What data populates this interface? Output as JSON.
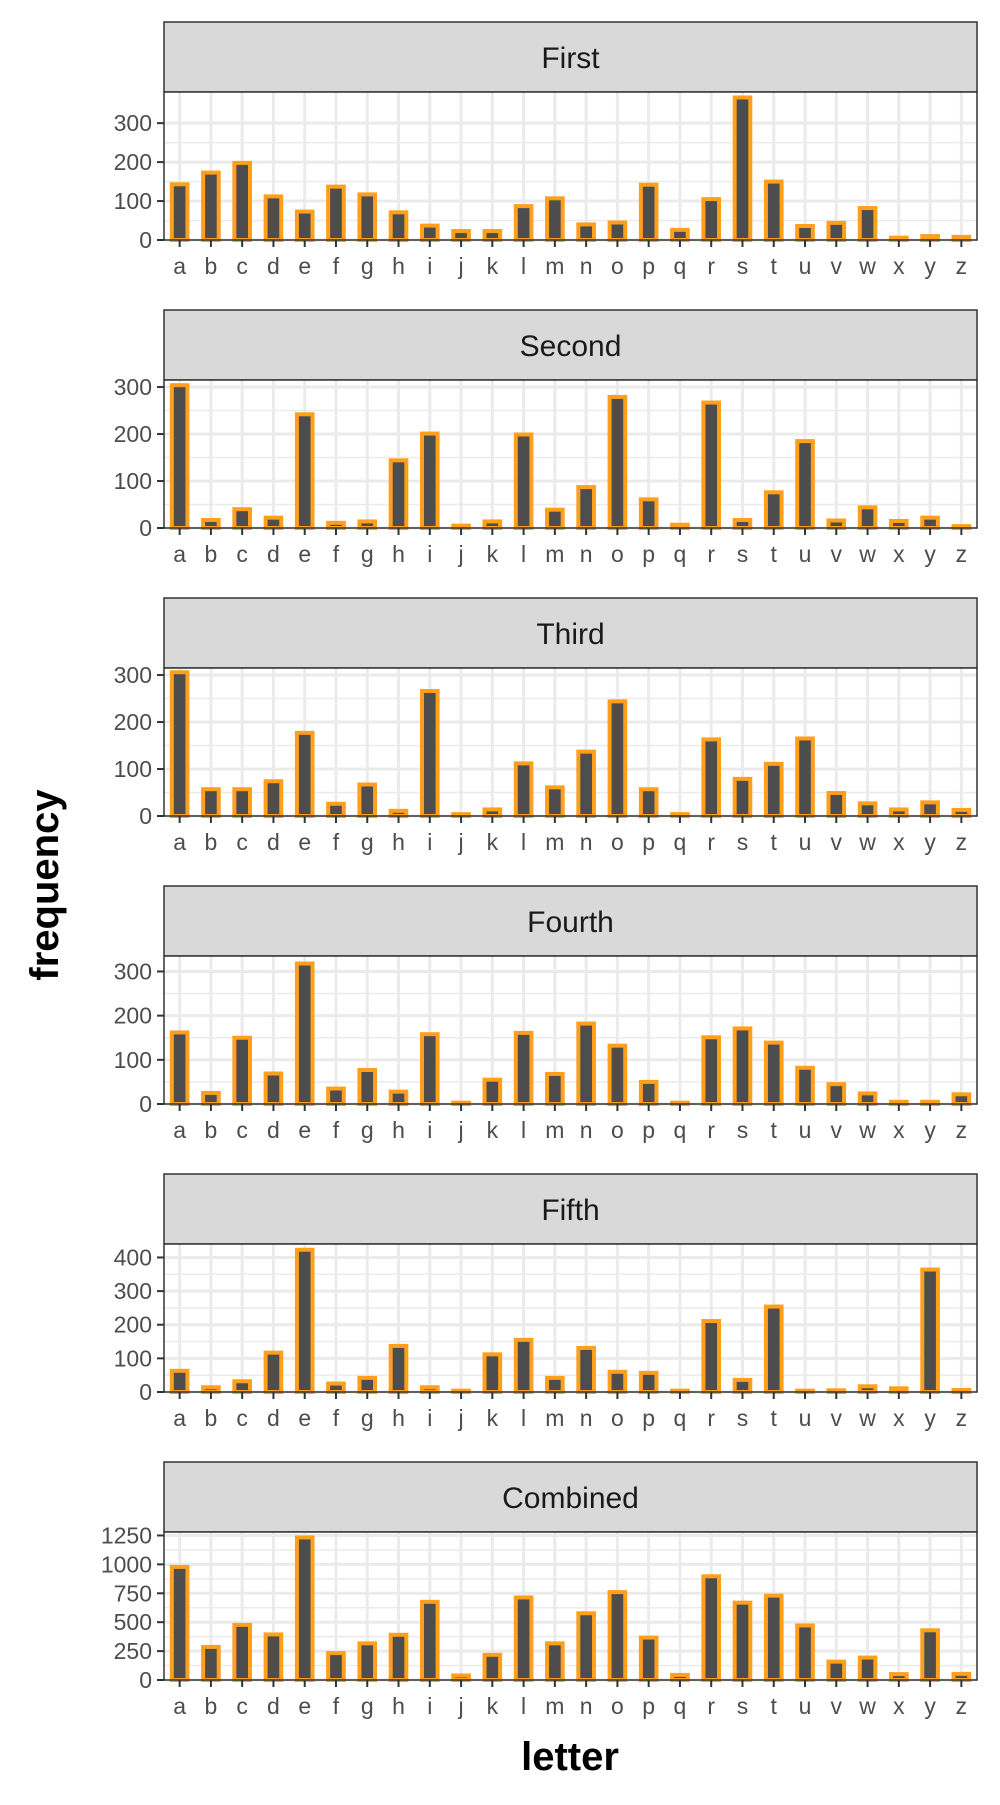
{
  "chart_data": {
    "type": "bar",
    "xlabel": "letter",
    "ylabel": "frequency",
    "categories": [
      "a",
      "b",
      "c",
      "d",
      "e",
      "f",
      "g",
      "h",
      "i",
      "j",
      "k",
      "l",
      "m",
      "n",
      "o",
      "p",
      "q",
      "r",
      "s",
      "t",
      "u",
      "v",
      "w",
      "x",
      "y",
      "z"
    ],
    "colors": {
      "bar_fill": "#4d4d4d",
      "bar_outline": "#ff9f1c",
      "strip_fill": "#d9d9d9",
      "grid": "#ebebeb"
    },
    "grid": true,
    "panels": [
      {
        "name": "First",
        "ylim": [
          0,
          380
        ],
        "yticks": [
          0,
          100,
          200,
          300
        ],
        "values": [
          143,
          173,
          198,
          112,
          73,
          137,
          117,
          71,
          37,
          23,
          23,
          87,
          107,
          40,
          45,
          142,
          26,
          105,
          366,
          150,
          36,
          44,
          82,
          6,
          10,
          8
        ]
      },
      {
        "name": "Second",
        "ylim": [
          0,
          315
        ],
        "yticks": [
          0,
          100,
          200,
          300
        ],
        "values": [
          304,
          17,
          40,
          22,
          242,
          11,
          14,
          144,
          201,
          5,
          14,
          199,
          39,
          87,
          279,
          61,
          7,
          267,
          17,
          76,
          185,
          16,
          44,
          15,
          22,
          4
        ]
      },
      {
        "name": "Third",
        "ylim": [
          0,
          315
        ],
        "yticks": [
          0,
          100,
          200,
          300
        ],
        "values": [
          306,
          57,
          57,
          74,
          177,
          26,
          67,
          11,
          266,
          4,
          14,
          112,
          61,
          137,
          244,
          57,
          4,
          163,
          79,
          111,
          165,
          49,
          27,
          14,
          29,
          13
        ]
      },
      {
        "name": "Fourth",
        "ylim": [
          0,
          335
        ],
        "yticks": [
          0,
          100,
          200,
          300
        ],
        "values": [
          162,
          25,
          150,
          69,
          318,
          35,
          77,
          28,
          158,
          3,
          55,
          161,
          68,
          182,
          132,
          50,
          3,
          151,
          171,
          139,
          82,
          45,
          24,
          5,
          5,
          22
        ]
      },
      {
        "name": "Fifth",
        "ylim": [
          0,
          440
        ],
        "yticks": [
          0,
          100,
          200,
          300,
          400
        ],
        "values": [
          63,
          14,
          32,
          117,
          423,
          25,
          42,
          137,
          14,
          4,
          112,
          155,
          42,
          131,
          60,
          57,
          4,
          211,
          36,
          254,
          4,
          5,
          17,
          11,
          364,
          6
        ]
      },
      {
        "name": "Combined",
        "ylim": [
          0,
          1280
        ],
        "yticks": [
          0,
          250,
          500,
          750,
          1000,
          1250
        ],
        "values": [
          978,
          286,
          477,
          394,
          1233,
          233,
          317,
          391,
          676,
          39,
          218,
          714,
          317,
          577,
          760,
          367,
          44,
          897,
          669,
          730,
          472,
          159,
          194,
          51,
          430,
          53
        ]
      }
    ]
  }
}
